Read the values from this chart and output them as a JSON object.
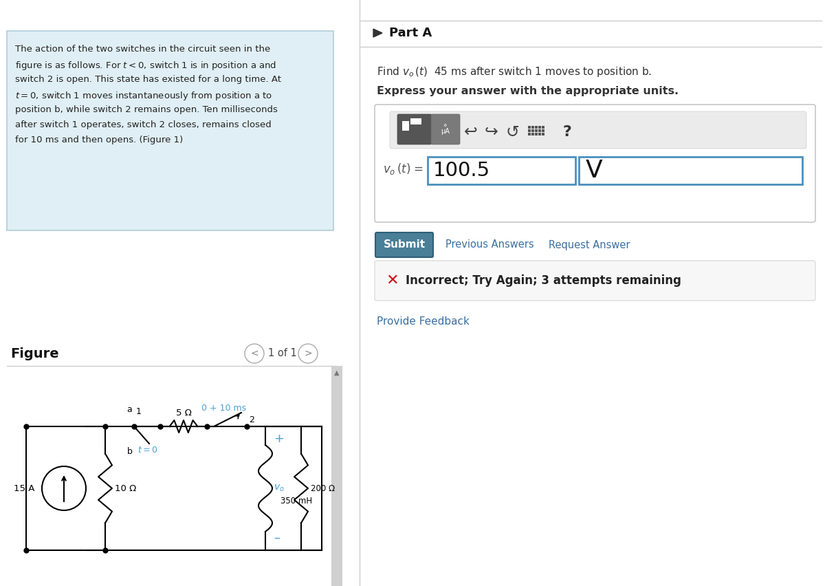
{
  "bg_color": "#f0f0f0",
  "white": "#ffffff",
  "left_panel_bg": "#e0eff5",
  "left_panel_border": "#b0cdd8",
  "left_text_color": "#222222",
  "right_bg": "#f5f5f5",
  "part_a_text": "Part A",
  "find_text_plain": "Find ",
  "find_vo": "v_o (t)",
  "find_rest": "  45 ms after switch 1 moves to position b.",
  "express_text": "Express your answer with the appropriate units.",
  "input_value": "100.5",
  "unit_value": "V",
  "submit_label": "Submit",
  "submit_bg": "#4a7f98",
  "submit_border": "#2e5f78",
  "prev_ans_label": "Previous Answers",
  "req_ans_label": "Request Answer",
  "link_color": "#3a6fa0",
  "incorrect_text": "Incorrect; Try Again; 3 attempts remaining",
  "incorrect_x_color": "#cc1111",
  "incorrect_bg": "#f8f8f8",
  "input_border": "#4a8fc0",
  "feedback_label": "Provide Feedback",
  "figure_label": "Figure",
  "nav_text": "1 of 1",
  "divider": "#cccccc",
  "toolbar_bg": "#e8e8e8",
  "icon1_bg": "#5a5a5a",
  "icon2_bg": "#7a7a7a",
  "circuit_color": "#000000",
  "cyan_color": "#4a9fd4"
}
